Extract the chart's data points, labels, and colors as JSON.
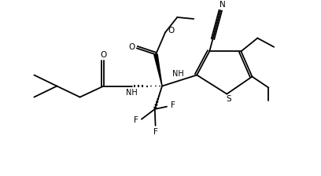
{
  "bg_color": "#ffffff",
  "line_color": "#000000",
  "lw": 1.3,
  "fig_width": 4.08,
  "fig_height": 2.24,
  "dpi": 100,
  "xlim": [
    0,
    10
  ],
  "ylim": [
    0,
    5.5
  ]
}
